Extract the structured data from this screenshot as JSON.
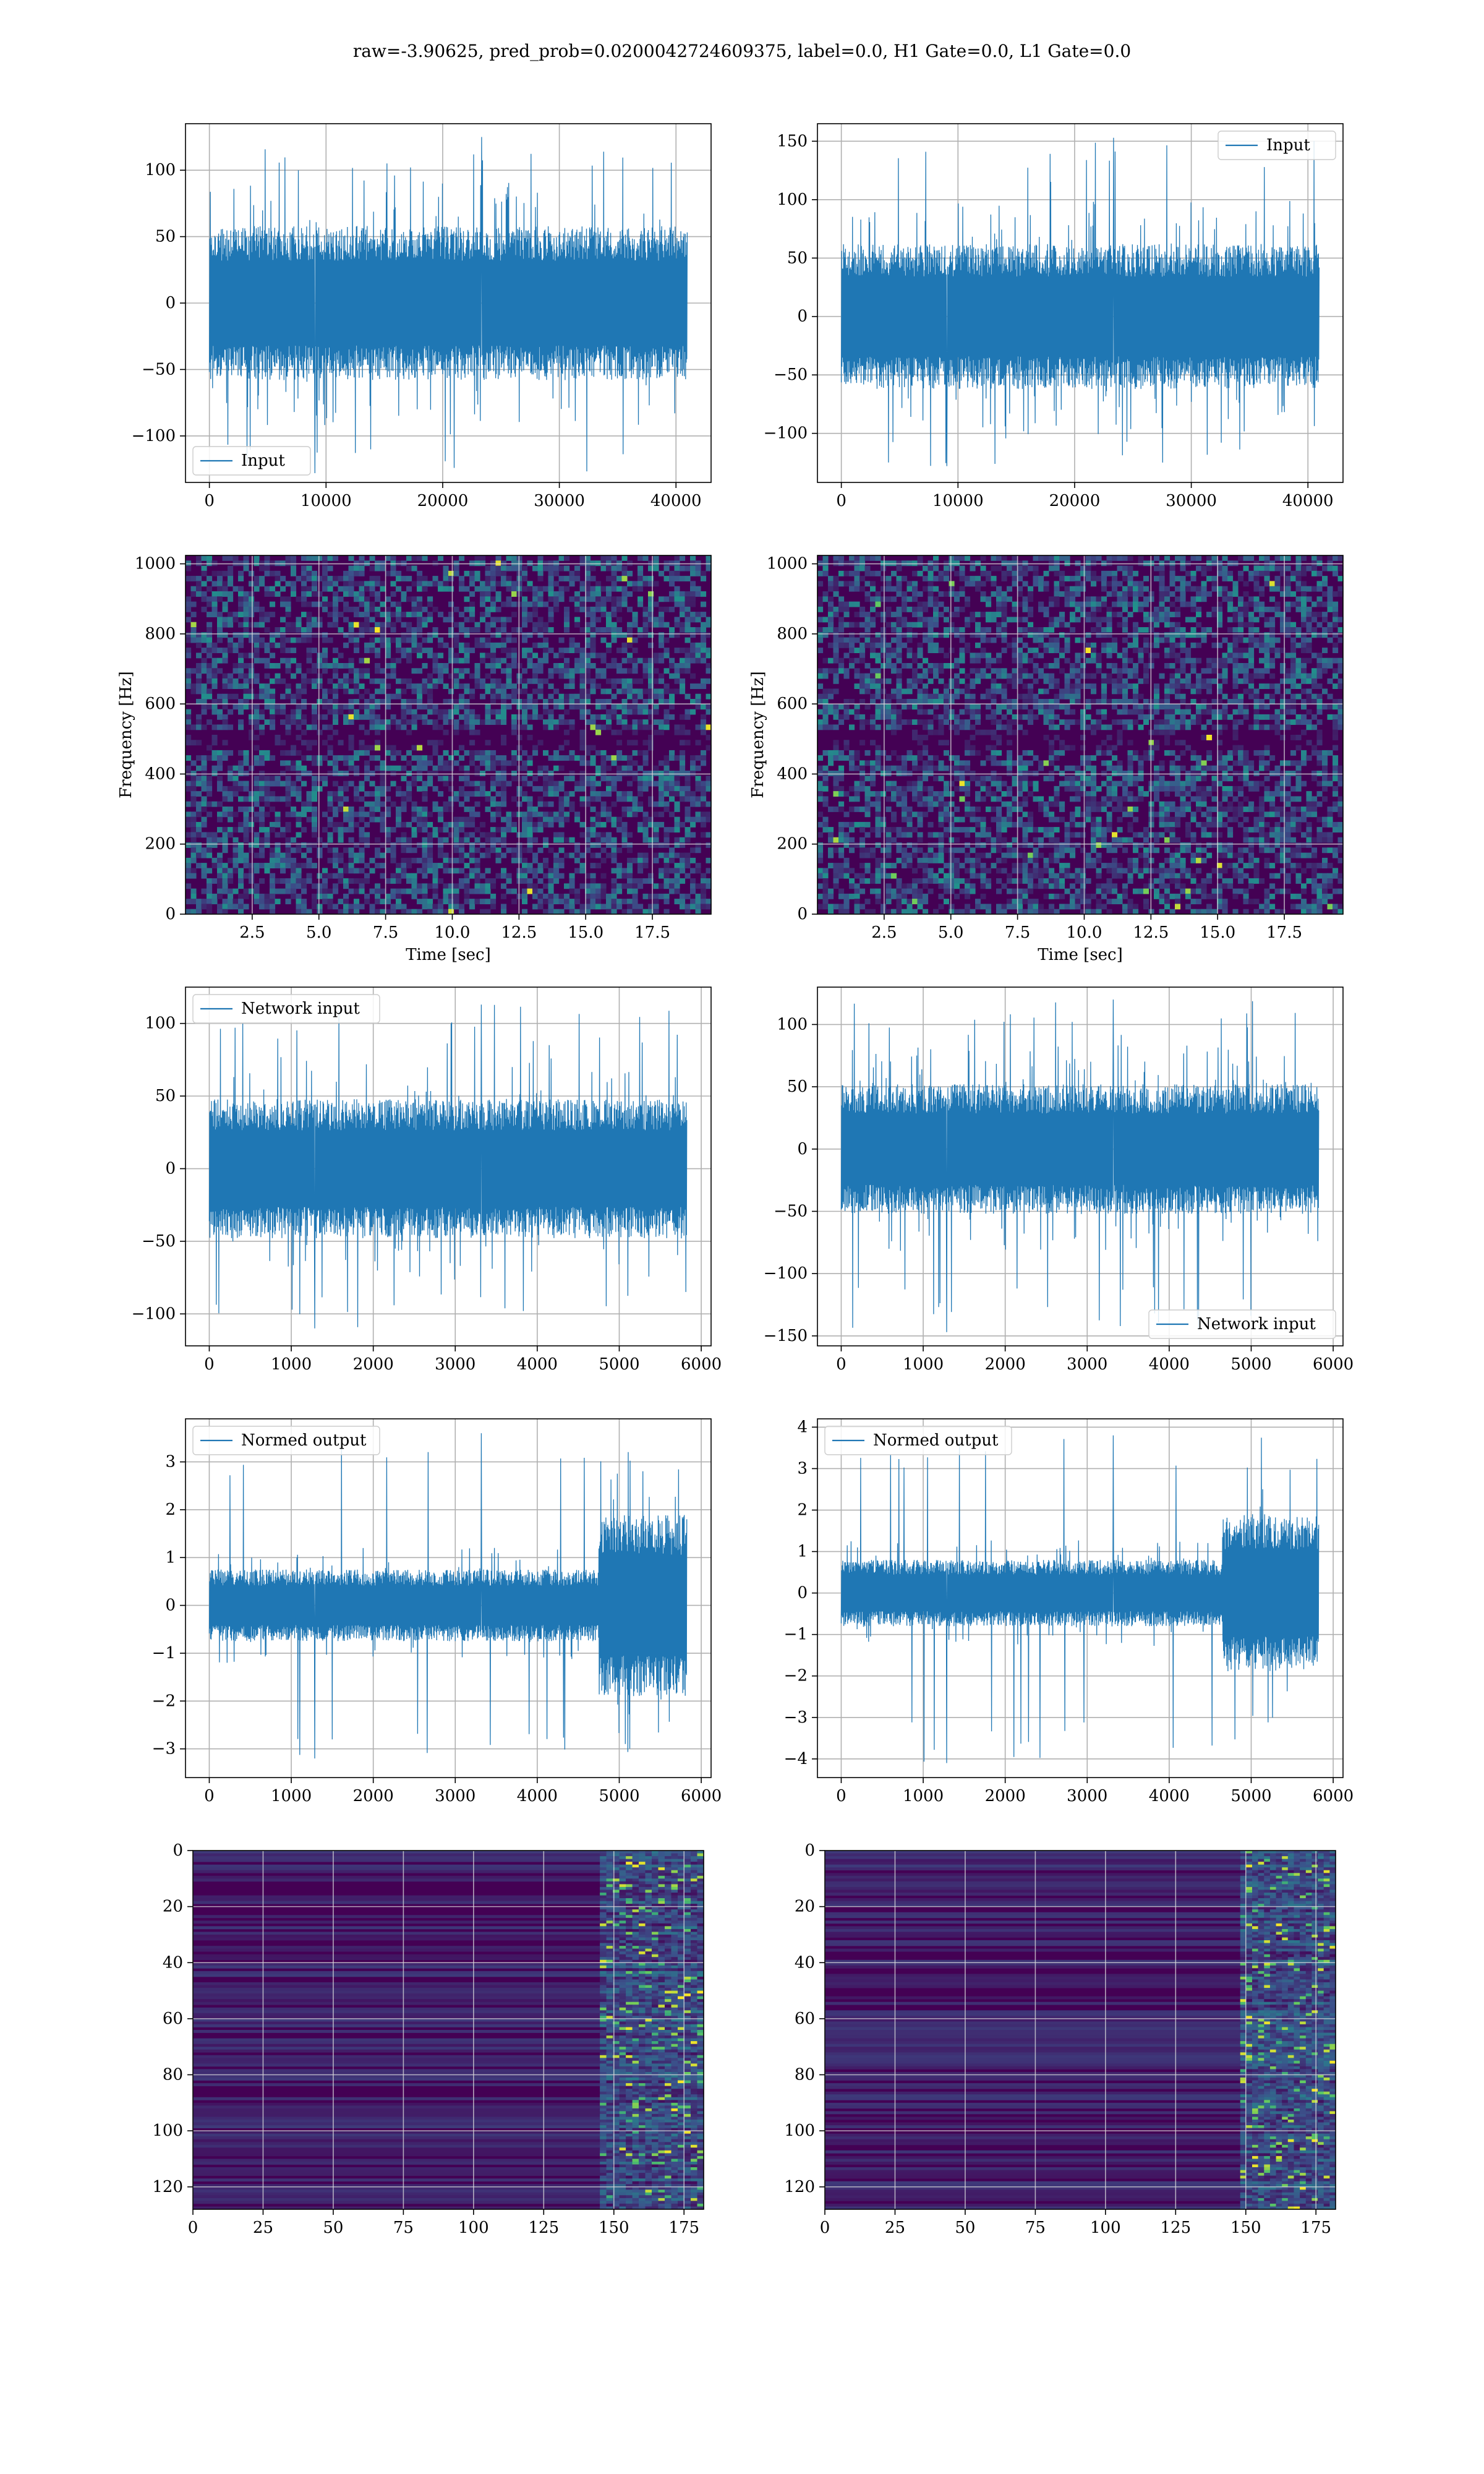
{
  "figure": {
    "suptitle": "raw=-3.90625, pred_prob=0.0200042724609375, label=0.0, H1 Gate=0.0, L1 Gate=0.0"
  },
  "colors": {
    "line": "#1f77b4",
    "grid": "#b0b0b0",
    "spectrogram_bg": "#440154",
    "viridis": [
      "#440154",
      "#3b528b",
      "#21918c",
      "#5ec962",
      "#fde725"
    ]
  },
  "chart_data": [
    {
      "type": "line",
      "id": "input-h1",
      "legend": "Input",
      "legend_loc": "lower-left",
      "xlim": [
        -2048,
        43008
      ],
      "ylim": [
        -135,
        135
      ],
      "xticks": [
        0,
        10000,
        20000,
        30000,
        40000
      ],
      "xticklabels": [
        "0",
        "10000",
        "20000",
        "30000",
        "40000"
      ],
      "yticks": [
        -100,
        -50,
        0,
        50,
        100
      ],
      "yticklabels": [
        "−100",
        "−50",
        "0",
        "50",
        "100"
      ],
      "signal": {
        "x_start": 0,
        "x_end": 40960,
        "amplitude": 58,
        "spike_max": 125,
        "spike_min": -128
      },
      "grid": true
    },
    {
      "type": "line",
      "id": "input-l1",
      "legend": "Input",
      "legend_loc": "upper-right",
      "xlim": [
        -2048,
        43008
      ],
      "ylim": [
        -142,
        165
      ],
      "xticks": [
        0,
        10000,
        20000,
        30000,
        40000
      ],
      "xticklabels": [
        "0",
        "10000",
        "20000",
        "30000",
        "40000"
      ],
      "yticks": [
        -100,
        -50,
        0,
        50,
        100,
        150
      ],
      "yticklabels": [
        "−100",
        "−50",
        "0",
        "50",
        "100",
        "150"
      ],
      "signal": {
        "x_start": 0,
        "x_end": 40960,
        "amplitude": 62,
        "spike_max": 153,
        "spike_min": -128
      },
      "grid": true
    },
    {
      "type": "heatmap",
      "id": "spectrogram-h1",
      "xlabel": "Time [sec]",
      "ylabel": "Frequency [Hz]",
      "xlim": [
        0,
        19.7
      ],
      "ylim": [
        0,
        1024
      ],
      "xticks": [
        2.5,
        5.0,
        7.5,
        10.0,
        12.5,
        15.0,
        17.5
      ],
      "xticklabels": [
        "2.5",
        "5.0",
        "7.5",
        "10.0",
        "12.5",
        "15.0",
        "17.5"
      ],
      "yticks": [
        0,
        200,
        400,
        600,
        800,
        1000
      ],
      "yticklabels": [
        "0",
        "200",
        "400",
        "600",
        "800",
        "1000"
      ],
      "grid": true
    },
    {
      "type": "heatmap",
      "id": "spectrogram-l1",
      "xlabel": "Time [sec]",
      "ylabel": "Frequency [Hz]",
      "xlim": [
        0,
        19.7
      ],
      "ylim": [
        0,
        1024
      ],
      "xticks": [
        2.5,
        5.0,
        7.5,
        10.0,
        12.5,
        15.0,
        17.5
      ],
      "xticklabels": [
        "2.5",
        "5.0",
        "7.5",
        "10.0",
        "12.5",
        "15.0",
        "17.5"
      ],
      "yticks": [
        0,
        200,
        400,
        600,
        800,
        1000
      ],
      "yticklabels": [
        "0",
        "200",
        "400",
        "600",
        "800",
        "1000"
      ],
      "grid": true
    },
    {
      "type": "line",
      "id": "network-input-h1",
      "legend": "Network input",
      "legend_loc": "upper-left",
      "xlim": [
        -290,
        6120
      ],
      "ylim": [
        -122,
        125
      ],
      "xticks": [
        0,
        1000,
        2000,
        3000,
        4000,
        5000,
        6000
      ],
      "xticklabels": [
        "0",
        "1000",
        "2000",
        "3000",
        "4000",
        "5000",
        "6000"
      ],
      "yticks": [
        -100,
        -50,
        0,
        50,
        100
      ],
      "yticklabels": [
        "−100",
        "−50",
        "0",
        "50",
        "100"
      ],
      "signal": {
        "x_start": 0,
        "x_end": 5824,
        "amplitude": 48,
        "spike_max": 113,
        "spike_min": -110
      },
      "grid": true
    },
    {
      "type": "line",
      "id": "network-input-l1",
      "legend": "Network input",
      "legend_loc": "lower-right",
      "xlim": [
        -290,
        6120
      ],
      "ylim": [
        -158,
        130
      ],
      "xticks": [
        0,
        1000,
        2000,
        3000,
        4000,
        5000,
        6000
      ],
      "xticklabels": [
        "0",
        "1000",
        "2000",
        "3000",
        "4000",
        "5000",
        "6000"
      ],
      "yticks": [
        -150,
        -100,
        -50,
        0,
        50,
        100
      ],
      "yticklabels": [
        "−150",
        "−100",
        "−50",
        "0",
        "50",
        "100"
      ],
      "signal": {
        "x_start": 0,
        "x_end": 5824,
        "amplitude": 52,
        "spike_max": 120,
        "spike_min": -147
      },
      "grid": true
    },
    {
      "type": "line",
      "id": "normed-output-h1",
      "legend": "Normed output",
      "legend_loc": "upper-left",
      "xlim": [
        -290,
        6120
      ],
      "ylim": [
        -3.6,
        3.9
      ],
      "xticks": [
        0,
        1000,
        2000,
        3000,
        4000,
        5000,
        6000
      ],
      "xticklabels": [
        "0",
        "1000",
        "2000",
        "3000",
        "4000",
        "5000",
        "6000"
      ],
      "yticks": [
        -3,
        -2,
        -1,
        0,
        1,
        2,
        3
      ],
      "yticklabels": [
        "−3",
        "−2",
        "−1",
        "0",
        "1",
        "2",
        "3"
      ],
      "signal": {
        "x_start": 0,
        "x_end": 5824,
        "amplitude": 0.75,
        "burst_start": 4750,
        "burst_amplitude": 1.9,
        "spike_max": 3.6,
        "spike_min": -3.2
      },
      "grid": true
    },
    {
      "type": "line",
      "id": "normed-output-l1",
      "legend": "Normed output",
      "legend_loc": "upper-left",
      "xlim": [
        -290,
        6120
      ],
      "ylim": [
        -4.45,
        4.2
      ],
      "xticks": [
        0,
        1000,
        2000,
        3000,
        4000,
        5000,
        6000
      ],
      "xticklabels": [
        "0",
        "1000",
        "2000",
        "3000",
        "4000",
        "5000",
        "6000"
      ],
      "yticks": [
        -4,
        -3,
        -2,
        -1,
        0,
        1,
        2,
        3,
        4
      ],
      "yticklabels": [
        "−4",
        "−3",
        "−2",
        "−1",
        "0",
        "1",
        "2",
        "3",
        "4"
      ],
      "signal": {
        "x_start": 0,
        "x_end": 5824,
        "amplitude": 0.8,
        "burst_start": 4650,
        "burst_amplitude": 1.9,
        "spike_max": 3.8,
        "spike_min": -4.1
      },
      "grid": true
    },
    {
      "type": "heatmap",
      "id": "feature-map-h1",
      "xlim": [
        0,
        182
      ],
      "ylim": [
        128,
        0
      ],
      "xticks": [
        0,
        25,
        50,
        75,
        100,
        125,
        150,
        175
      ],
      "xticklabels": [
        "0",
        "25",
        "50",
        "75",
        "100",
        "125",
        "150",
        "175"
      ],
      "yticks": [
        0,
        20,
        40,
        60,
        80,
        100,
        120
      ],
      "yticklabels": [
        "0",
        "20",
        "40",
        "60",
        "80",
        "100",
        "120"
      ],
      "active_from": 145,
      "grid": true
    },
    {
      "type": "heatmap",
      "id": "feature-map-l1",
      "xlim": [
        0,
        182
      ],
      "ylim": [
        128,
        0
      ],
      "xticks": [
        0,
        25,
        50,
        75,
        100,
        125,
        150,
        175
      ],
      "xticklabels": [
        "0",
        "25",
        "50",
        "75",
        "100",
        "125",
        "150",
        "175"
      ],
      "yticks": [
        0,
        20,
        40,
        60,
        80,
        100,
        120
      ],
      "yticklabels": [
        "0",
        "20",
        "40",
        "60",
        "80",
        "100",
        "120"
      ],
      "active_from": 148,
      "grid": true
    }
  ]
}
